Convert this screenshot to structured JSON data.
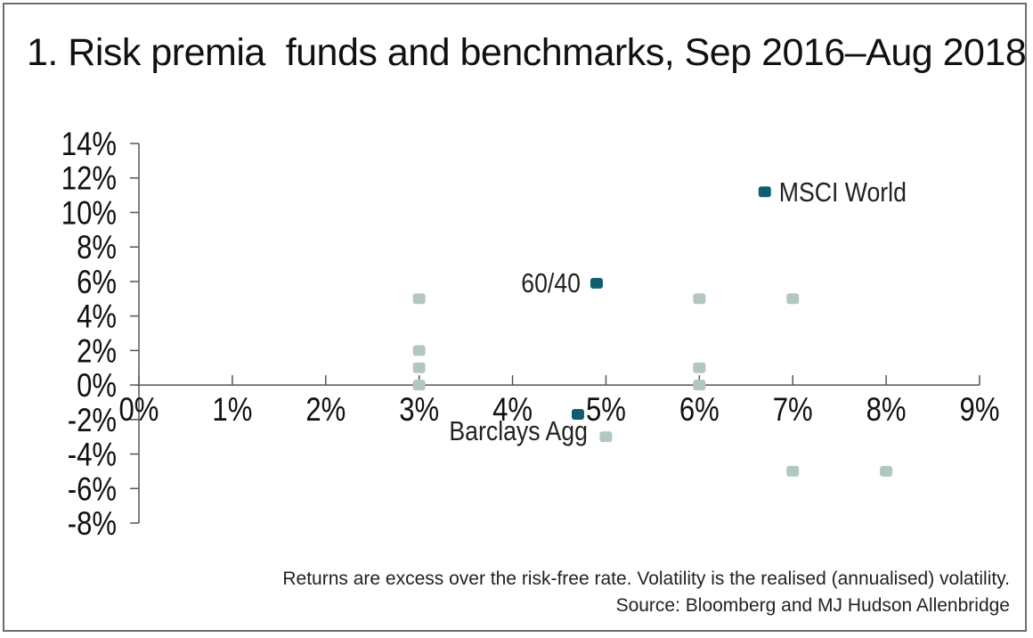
{
  "title": "1. Risk premia  funds and benchmarks, Sep 2016–Aug 2018",
  "footnote": "Returns are excess over the risk-free rate. Volatility is the realised (annualised) volatility.",
  "source": "Source: Bloomberg and MJ Hudson Allenbridge",
  "colors": {
    "highlight": "#0e5e6f",
    "muted": "#b3c7c2",
    "axis": "#555555",
    "text": "#111111"
  },
  "chart_data": {
    "type": "scatter",
    "xlim": [
      0,
      9
    ],
    "ylim": [
      -8,
      14
    ],
    "x_ticks": [
      0,
      1,
      2,
      3,
      4,
      5,
      6,
      7,
      8,
      9
    ],
    "y_ticks": [
      14,
      12,
      10,
      8,
      6,
      4,
      2,
      0,
      -2,
      -4,
      -6,
      -8
    ],
    "x_tick_labels": [
      "0%",
      "1%",
      "2%",
      "3%",
      "4%",
      "5%",
      "6%",
      "7%",
      "8%",
      "9%"
    ],
    "y_tick_labels": [
      "14%",
      "12%",
      "10%",
      "8%",
      "6%",
      "4%",
      "2%",
      "0%",
      "-2%",
      "-4%",
      "-6%",
      "-8%"
    ],
    "grid": false,
    "series": [
      {
        "points": [
          {
            "x": 3,
            "y": 5
          },
          {
            "x": 3,
            "y": 2
          },
          {
            "x": 3,
            "y": 1
          },
          {
            "x": 3,
            "y": 0
          },
          {
            "x": 5,
            "y": -3
          },
          {
            "x": 6,
            "y": 5
          },
          {
            "x": 6,
            "y": 1
          },
          {
            "x": 6,
            "y": 0
          },
          {
            "x": 7,
            "y": 5
          },
          {
            "x": 7,
            "y": -5
          },
          {
            "x": 8,
            "y": -5
          }
        ]
      },
      {
        "points": [
          {
            "x": 6.7,
            "y": 11.2,
            "label": "MSCI World",
            "label_side": "right"
          },
          {
            "x": 4.9,
            "y": 5.9,
            "label": "60/40",
            "label_side": "left"
          },
          {
            "x": 4.7,
            "y": -1.7,
            "label": "Barclays Agg",
            "label_side": "below-left"
          }
        ]
      }
    ]
  }
}
